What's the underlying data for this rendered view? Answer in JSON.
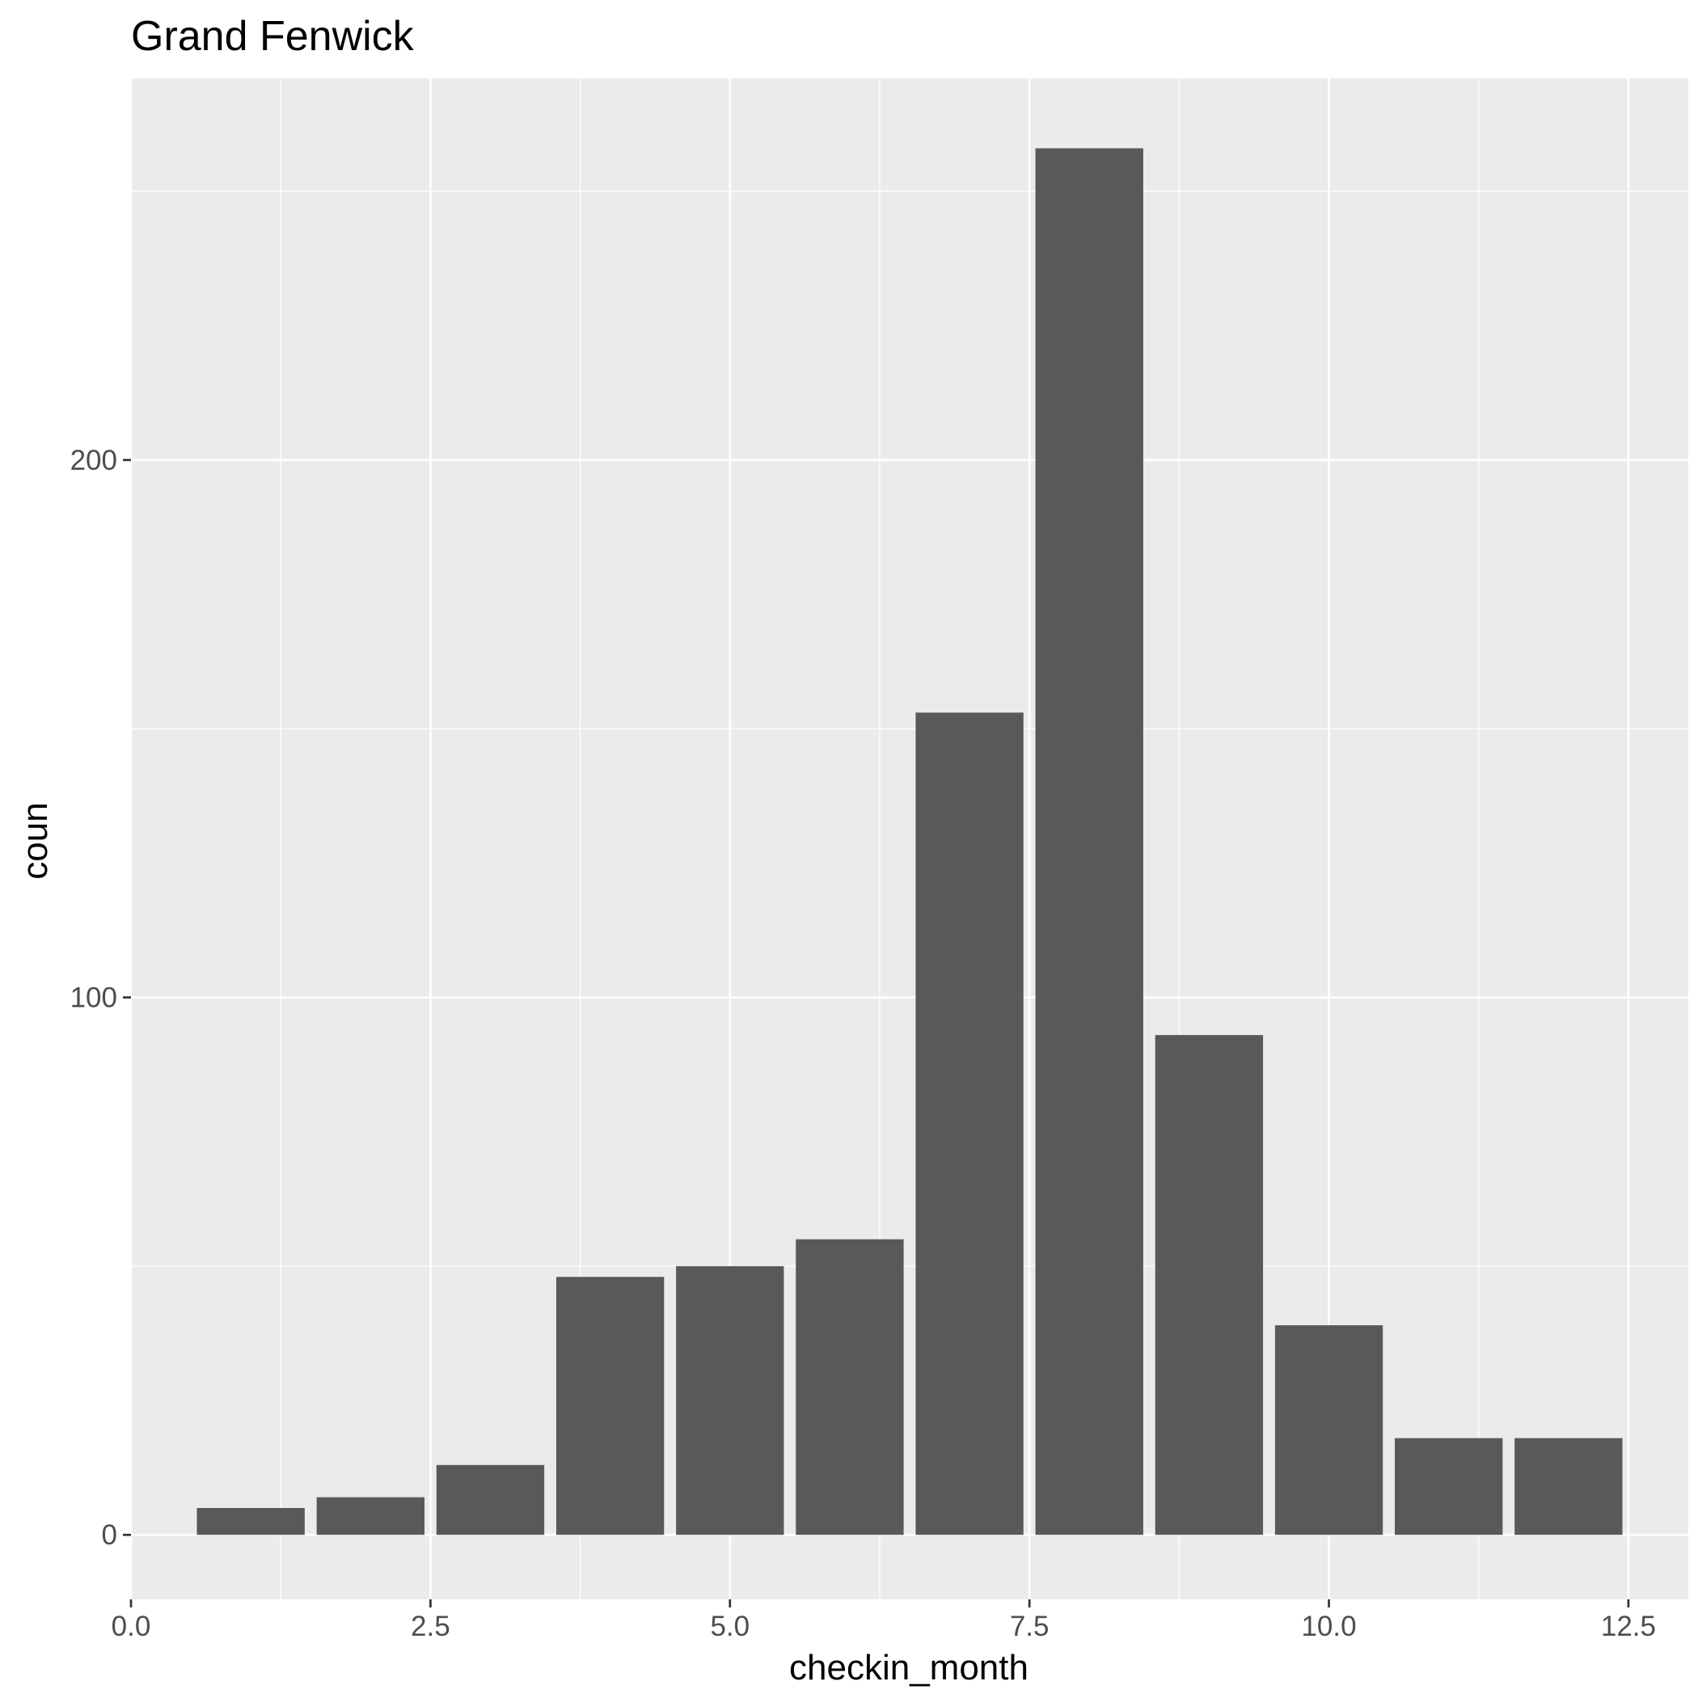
{
  "chart_data": {
    "type": "bar",
    "title": "Grand Fenwick",
    "xlabel": "checkin_month",
    "ylabel": "coun",
    "x": [
      1,
      2,
      3,
      4,
      5,
      6,
      7,
      8,
      9,
      10,
      11,
      12
    ],
    "values": [
      5,
      7,
      13,
      48,
      50,
      55,
      153,
      258,
      93,
      39,
      18,
      18
    ],
    "xlim": [
      0,
      13
    ],
    "ylim": [
      -12,
      271
    ],
    "x_ticks": [
      0,
      2.5,
      5,
      7.5,
      10,
      12.5
    ],
    "x_tick_labels": [
      "0.0",
      "2.5",
      "5.0",
      "7.5",
      "10.0",
      "12.5"
    ],
    "y_ticks": [
      0,
      100,
      200
    ],
    "y_tick_labels": [
      "0",
      "100",
      "200"
    ],
    "bar_width": 0.9,
    "grid": true,
    "colors": {
      "panel": "#EBEBEB",
      "grid": "#FFFFFF",
      "bar": "#595959",
      "tick_text": "#4D4D4D",
      "axis_tick": "#333333"
    }
  }
}
